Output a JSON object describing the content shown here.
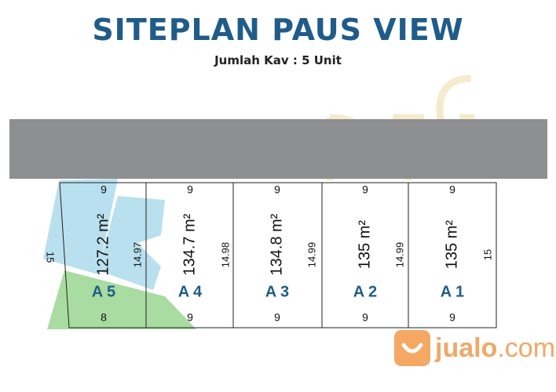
{
  "header": {
    "title": "SITEPLAN PAUS VIEW",
    "subtitle": "Jumlah Kav : 5 Unit"
  },
  "watermark": {
    "text": "PT EGP PROPERTY",
    "color": "#f3e6c0"
  },
  "road_color": "#8e8f91",
  "lots": [
    {
      "name": "A 5",
      "area": "127.2 m²",
      "top": "9",
      "bottom": "8",
      "right": "14.97",
      "left": "15"
    },
    {
      "name": "A 4",
      "area": "134.7 m²",
      "top": "9",
      "bottom": "9",
      "right": "14.98"
    },
    {
      "name": "A 3",
      "area": "134.8 m²",
      "top": "9",
      "bottom": "9",
      "right": "14.99"
    },
    {
      "name": "A 2",
      "area": "135 m²",
      "top": "9",
      "bottom": "9",
      "right": "14.99"
    },
    {
      "name": "A 1",
      "area": "135 m²",
      "top": "9",
      "bottom": "9",
      "right": "15"
    }
  ],
  "lot_label_color": "#1f5c8a",
  "logo": {
    "brand": "jualo",
    "suffix": ".com",
    "color": "#f5a863"
  }
}
